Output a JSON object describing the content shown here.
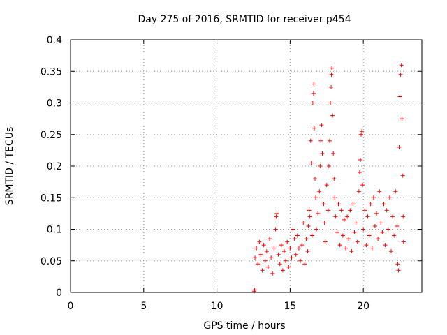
{
  "chart_data": {
    "type": "scatter",
    "title": "Day 275 of 2016, SRMTID for receiver p454",
    "xlabel": "GPS time / hours",
    "ylabel": "SRMTID / TECUs",
    "xlim": [
      0,
      24
    ],
    "ylim": [
      0,
      0.4
    ],
    "xticks": [
      0,
      5,
      10,
      15,
      20
    ],
    "xtick_labels": [
      "0",
      "5",
      "10",
      "15",
      "20"
    ],
    "yticks": [
      0,
      0.05,
      0.1,
      0.15,
      0.2,
      0.25,
      0.3,
      0.35,
      0.4
    ],
    "ytick_labels": [
      "0",
      "0.05",
      "0.1",
      "0.15",
      "0.2",
      "0.25",
      "0.3",
      "0.35",
      "0.4"
    ],
    "grid": true,
    "marker": "+",
    "color": "#ff0000",
    "series": [
      {
        "name": "SRMTID",
        "points": [
          [
            12.55,
            0.002
          ],
          [
            12.58,
            0.004
          ],
          [
            12.6,
            0.055
          ],
          [
            12.7,
            0.07
          ],
          [
            12.8,
            0.045
          ],
          [
            12.9,
            0.08
          ],
          [
            13.0,
            0.06
          ],
          [
            13.1,
            0.035
          ],
          [
            13.2,
            0.075
          ],
          [
            13.3,
            0.05
          ],
          [
            13.4,
            0.065
          ],
          [
            13.5,
            0.04
          ],
          [
            13.6,
            0.085
          ],
          [
            13.7,
            0.055
          ],
          [
            13.8,
            0.03
          ],
          [
            13.9,
            0.07
          ],
          [
            14.0,
            0.1
          ],
          [
            14.05,
            0.12
          ],
          [
            14.1,
            0.125
          ],
          [
            14.2,
            0.06
          ],
          [
            14.3,
            0.045
          ],
          [
            14.4,
            0.075
          ],
          [
            14.5,
            0.035
          ],
          [
            14.6,
            0.065
          ],
          [
            14.7,
            0.05
          ],
          [
            14.8,
            0.08
          ],
          [
            14.9,
            0.04
          ],
          [
            15.0,
            0.07
          ],
          [
            15.1,
            0.055
          ],
          [
            15.2,
            0.1
          ],
          [
            15.3,
            0.085
          ],
          [
            15.4,
            0.06
          ],
          [
            15.5,
            0.09
          ],
          [
            15.6,
            0.07
          ],
          [
            15.7,
            0.05
          ],
          [
            15.8,
            0.075
          ],
          [
            15.9,
            0.11
          ],
          [
            16.0,
            0.045
          ],
          [
            16.1,
            0.085
          ],
          [
            16.2,
            0.065
          ],
          [
            16.25,
            0.105
          ],
          [
            16.3,
            0.13
          ],
          [
            16.35,
            0.12
          ],
          [
            16.4,
            0.24
          ],
          [
            16.45,
            0.205
          ],
          [
            16.5,
            0.09
          ],
          [
            16.55,
            0.3
          ],
          [
            16.6,
            0.315
          ],
          [
            16.62,
            0.33
          ],
          [
            16.65,
            0.26
          ],
          [
            16.7,
            0.18
          ],
          [
            16.75,
            0.15
          ],
          [
            16.8,
            0.1
          ],
          [
            16.9,
            0.125
          ],
          [
            17.0,
            0.16
          ],
          [
            17.05,
            0.2
          ],
          [
            17.1,
            0.24
          ],
          [
            17.15,
            0.265
          ],
          [
            17.2,
            0.22
          ],
          [
            17.3,
            0.14
          ],
          [
            17.35,
            0.11
          ],
          [
            17.4,
            0.08
          ],
          [
            17.5,
            0.17
          ],
          [
            17.6,
            0.13
          ],
          [
            17.65,
            0.2
          ],
          [
            17.7,
            0.24
          ],
          [
            17.75,
            0.3
          ],
          [
            17.8,
            0.325
          ],
          [
            17.82,
            0.345
          ],
          [
            17.85,
            0.355
          ],
          [
            17.9,
            0.28
          ],
          [
            17.95,
            0.22
          ],
          [
            18.0,
            0.18
          ],
          [
            18.05,
            0.15
          ],
          [
            18.1,
            0.12
          ],
          [
            18.2,
            0.095
          ],
          [
            18.3,
            0.14
          ],
          [
            18.4,
            0.075
          ],
          [
            18.5,
            0.13
          ],
          [
            18.6,
            0.09
          ],
          [
            18.7,
            0.115
          ],
          [
            18.8,
            0.07
          ],
          [
            18.9,
            0.12
          ],
          [
            19.0,
            0.085
          ],
          [
            19.1,
            0.13
          ],
          [
            19.2,
            0.065
          ],
          [
            19.3,
            0.14
          ],
          [
            19.4,
            0.095
          ],
          [
            19.5,
            0.11
          ],
          [
            19.6,
            0.08
          ],
          [
            19.7,
            0.16
          ],
          [
            19.75,
            0.19
          ],
          [
            19.8,
            0.21
          ],
          [
            19.85,
            0.25
          ],
          [
            19.9,
            0.255
          ],
          [
            19.95,
            0.17
          ],
          [
            20.0,
            0.1
          ],
          [
            20.1,
            0.13
          ],
          [
            20.2,
            0.075
          ],
          [
            20.3,
            0.12
          ],
          [
            20.4,
            0.09
          ],
          [
            20.5,
            0.14
          ],
          [
            20.6,
            0.07
          ],
          [
            20.7,
            0.15
          ],
          [
            20.8,
            0.105
          ],
          [
            20.9,
            0.125
          ],
          [
            21.0,
            0.085
          ],
          [
            21.1,
            0.16
          ],
          [
            21.2,
            0.11
          ],
          [
            21.3,
            0.095
          ],
          [
            21.4,
            0.14
          ],
          [
            21.5,
            0.075
          ],
          [
            21.6,
            0.13
          ],
          [
            21.7,
            0.1
          ],
          [
            21.8,
            0.15
          ],
          [
            21.9,
            0.065
          ],
          [
            22.0,
            0.12
          ],
          [
            22.1,
            0.09
          ],
          [
            22.2,
            0.16
          ],
          [
            22.3,
            0.105
          ],
          [
            22.35,
            0.045
          ],
          [
            22.4,
            0.035
          ],
          [
            22.45,
            0.23
          ],
          [
            22.5,
            0.31
          ],
          [
            22.55,
            0.345
          ],
          [
            22.6,
            0.36
          ],
          [
            22.65,
            0.275
          ],
          [
            22.7,
            0.185
          ],
          [
            22.72,
            0.12
          ],
          [
            22.75,
            0.08
          ]
        ]
      }
    ]
  }
}
